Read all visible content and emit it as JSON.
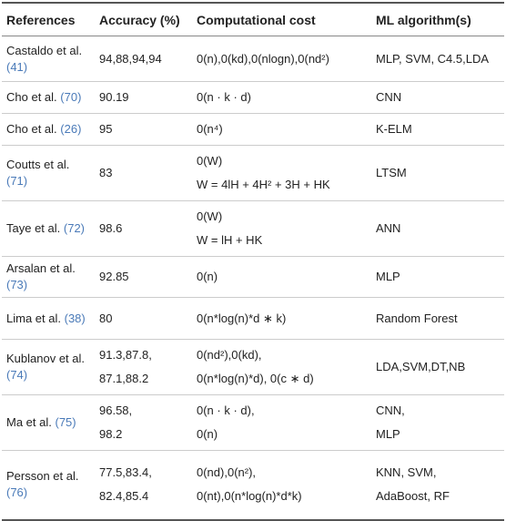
{
  "table": {
    "header": [
      "References",
      "Accuracy (%)",
      "Computational cost",
      "ML algorithm(s)"
    ],
    "rows": [
      {
        "name": "Castaldo et al.",
        "ref": "(41)",
        "accuracy": [
          "94,88,94,94"
        ],
        "cost": [
          "0(n),0(kd),0(nlogn),0(nd²)"
        ],
        "algorithm": [
          "MLP, SVM, C4.5,LDA"
        ]
      },
      {
        "name": "Cho et al.",
        "ref": "(70)",
        "accuracy": [
          "90.19"
        ],
        "cost": [
          "0(n · k · d)"
        ],
        "algorithm": [
          "CNN"
        ]
      },
      {
        "name": "Cho et al.",
        "ref": "(26)",
        "accuracy": [
          "95"
        ],
        "cost": [
          "0(n⁴)"
        ],
        "algorithm": [
          "K-ELM"
        ]
      },
      {
        "name": "Coutts et al.",
        "ref": "(71)",
        "accuracy": [
          "83"
        ],
        "cost": [
          "0(W)",
          "W = 4lH + 4H² + 3H + HK"
        ],
        "algorithm": [
          "LTSM"
        ]
      },
      {
        "name": "Taye et al.",
        "ref": "(72)",
        "accuracy": [
          "98.6"
        ],
        "cost": [
          "0(W)",
          "W = lH + HK"
        ],
        "algorithm": [
          "ANN"
        ]
      },
      {
        "name": "Arsalan et al.",
        "ref": "(73)",
        "accuracy": [
          "92.85"
        ],
        "cost": [
          "0(n)"
        ],
        "algorithm": [
          "MLP"
        ]
      },
      {
        "name": "Lima et al.",
        "ref": "(38)",
        "accuracy": [
          "80"
        ],
        "cost": [
          "0(n*log(n)*d ∗ k)"
        ],
        "algorithm": [
          "Random Forest"
        ]
      },
      {
        "name": "Kublanov et al.",
        "ref": "(74)",
        "accuracy": [
          "91.3,87.8,",
          "87.1,88.2"
        ],
        "cost": [
          "0(nd²),0(kd),",
          "0(n*log(n)*d), 0(c ∗ d)"
        ],
        "algorithm": [
          "LDA,SVM,DT,NB"
        ]
      },
      {
        "name": "Ma et al.",
        "ref": "(75)",
        "accuracy": [
          "96.58,",
          "98.2"
        ],
        "cost": [
          "0(n · k · d),",
          "0(n)"
        ],
        "algorithm": [
          "CNN,",
          "MLP"
        ]
      },
      {
        "name": "Persson et al.",
        "ref": "(76)",
        "accuracy": [
          "77.5,83.4,",
          "82.4,85.4"
        ],
        "cost": [
          "0(nd),0(n²),",
          "0(nt),0(n*log(n)*d*k)"
        ],
        "algorithm": [
          "KNN, SVM,",
          "AdaBoost, RF"
        ]
      }
    ]
  }
}
